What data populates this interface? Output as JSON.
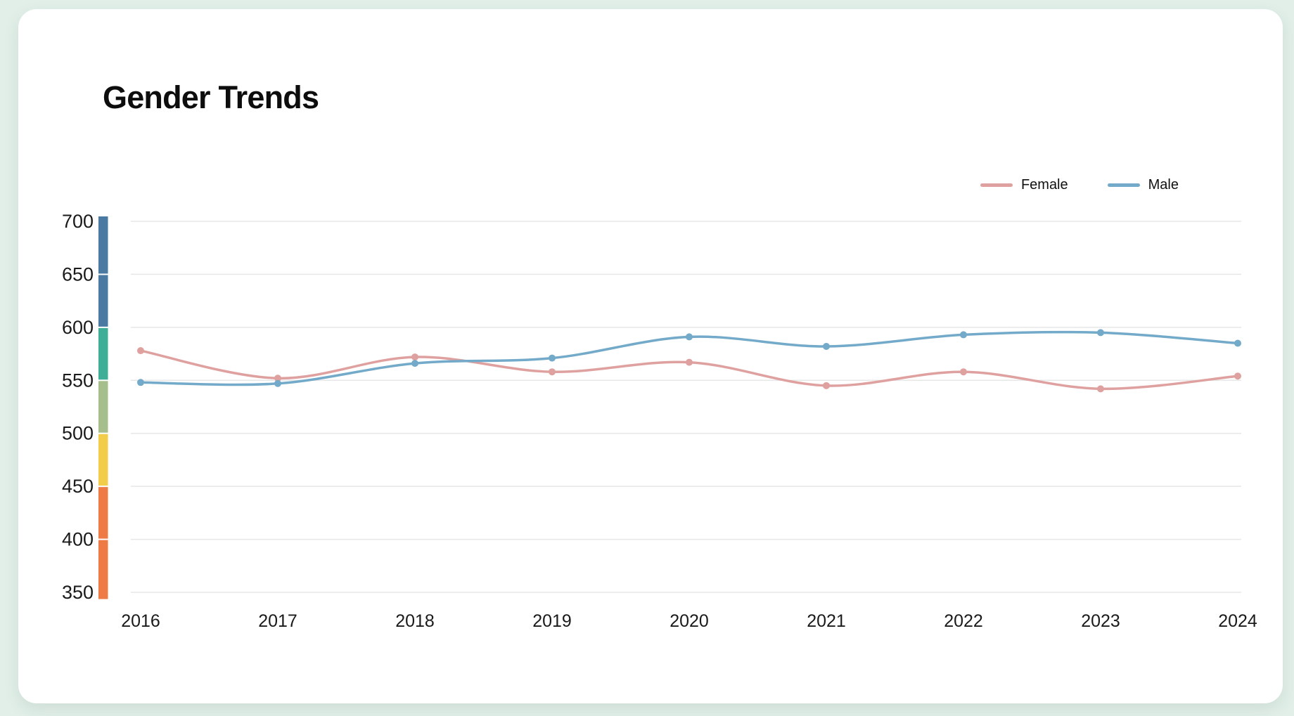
{
  "page": {
    "background_color": "#e1efe8",
    "card_color": "#ffffff"
  },
  "header": {
    "title": "Gender Trends"
  },
  "legend": {
    "position": "top-right",
    "items": [
      {
        "label": "Female",
        "color": "#dfa19f"
      },
      {
        "label": "Male",
        "color": "#73aac9"
      }
    ]
  },
  "chart_data": {
    "type": "line",
    "title": "Gender Trends",
    "categories": [
      "2016",
      "2017",
      "2018",
      "2019",
      "2020",
      "2021",
      "2022",
      "2023",
      "2024"
    ],
    "series": [
      {
        "name": "Female",
        "color": "#dfa19f",
        "values": [
          578,
          552,
          572,
          558,
          567,
          545,
          558,
          542,
          554
        ]
      },
      {
        "name": "Male",
        "color": "#73aac9",
        "values": [
          548,
          547,
          566,
          571,
          591,
          582,
          593,
          595,
          585
        ]
      }
    ],
    "xlabel": "",
    "ylabel": "",
    "ylim": [
      350,
      700
    ],
    "yticks": [
      350,
      400,
      450,
      500,
      550,
      600,
      650,
      700
    ],
    "grid": "horizontal gridlines only",
    "gridline_color": "#e7e7e7",
    "axis_label_color": "#1a1a1a",
    "smooth": true,
    "point_markers": true,
    "legend_position": "top-right",
    "colorbar": {
      "description": "segmented color scale strip along the y-axis",
      "segments": [
        {
          "from": 650,
          "to": 707,
          "color": "#4a7aa2"
        },
        {
          "from": 600,
          "to": 650,
          "color": "#4a7aa2"
        },
        {
          "from": 550,
          "to": 600,
          "color": "#3fae96"
        },
        {
          "from": 500,
          "to": 550,
          "color": "#a6bd8c"
        },
        {
          "from": 450,
          "to": 500,
          "color": "#f1cd4b"
        },
        {
          "from": 400,
          "to": 450,
          "color": "#ee7a46"
        },
        {
          "from": 343,
          "to": 400,
          "color": "#ee7a46"
        }
      ]
    }
  }
}
